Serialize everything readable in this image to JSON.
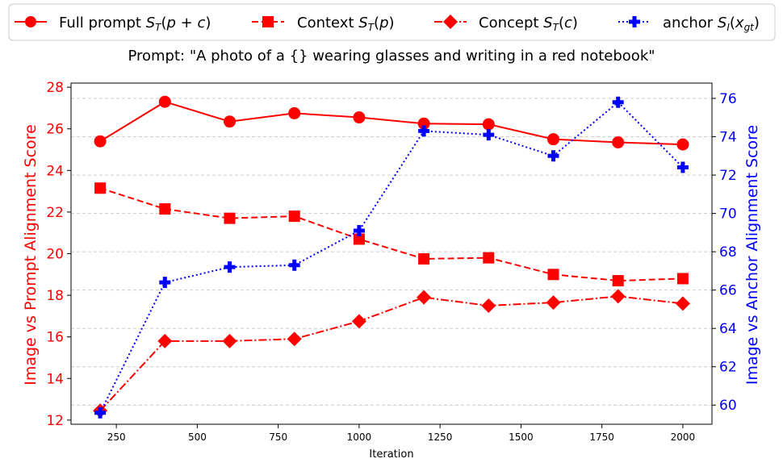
{
  "chart_data": {
    "type": "line",
    "title": "Prompt: \"A photo of a {} wearing glasses and writing in a red notebook\"",
    "xlabel": "Iteration",
    "ylabel_left": "Image vs Prompt Alignment Score",
    "ylabel_right": "Image vs Anchor Alignment Score",
    "x": [
      200,
      400,
      600,
      800,
      1000,
      1200,
      1400,
      1600,
      1800,
      2000
    ],
    "xlim": [
      110,
      2090
    ],
    "ylim_left": [
      11.8,
      28.2
    ],
    "ylim_right": [
      59.0,
      76.8
    ],
    "xticks": [
      250,
      500,
      750,
      1000,
      1250,
      1500,
      1750,
      2000
    ],
    "yticks_left": [
      12,
      14,
      16,
      18,
      20,
      22,
      24,
      26,
      28
    ],
    "yticks_right": [
      60,
      62,
      64,
      66,
      68,
      70,
      72,
      74,
      76
    ],
    "grid": "horizontal dashed",
    "legend_position": "top",
    "colors": {
      "left_axis": "#ff0000",
      "right_axis": "#0000ff",
      "grid": "#cccccc"
    },
    "series": [
      {
        "name": "Full prompt $S_T(p+c)$",
        "axis": "left",
        "color": "#ff0000",
        "line": "solid",
        "marker": "circle",
        "values": [
          25.4,
          27.3,
          26.35,
          26.75,
          26.55,
          26.25,
          26.22,
          25.5,
          25.35,
          25.25
        ]
      },
      {
        "name": "Context $S_T(p)$",
        "axis": "left",
        "color": "#ff0000",
        "line": "dashed",
        "marker": "square",
        "values": [
          23.15,
          22.15,
          21.7,
          21.8,
          20.7,
          19.75,
          19.8,
          19.0,
          18.7,
          18.8
        ]
      },
      {
        "name": "Concept $S_T(c)$",
        "axis": "left",
        "color": "#ff0000",
        "line": "dashdot",
        "marker": "diamond",
        "values": [
          12.45,
          15.8,
          15.8,
          15.9,
          16.75,
          17.9,
          17.5,
          17.65,
          17.95,
          17.6
        ]
      },
      {
        "name": "anchor $S_I(x_{gt})$",
        "axis": "right",
        "color": "#0000ff",
        "line": "dotted",
        "marker": "plus",
        "values": [
          59.6,
          66.4,
          67.2,
          67.3,
          69.1,
          74.3,
          74.1,
          73.0,
          75.8,
          72.4
        ]
      }
    ]
  }
}
